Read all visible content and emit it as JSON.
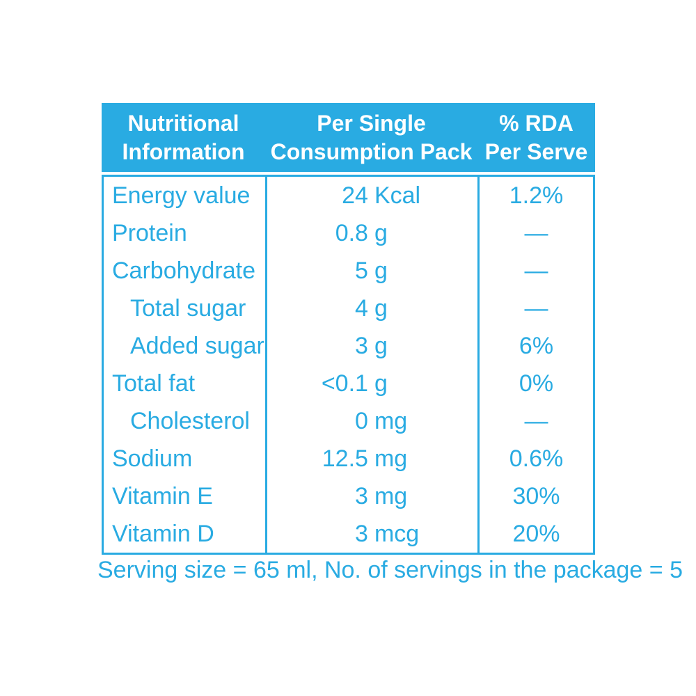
{
  "colors": {
    "accent": "#29ABE2",
    "header_text": "#FFFFFF",
    "background": "#FFFFFF"
  },
  "table": {
    "headers": [
      {
        "line1": "Nutritional",
        "line2": "Information"
      },
      {
        "line1": "Per Single",
        "line2": "Consumption Pack"
      },
      {
        "line1": "% RDA",
        "line2": "Per Serve"
      }
    ],
    "rows": [
      {
        "label": "Energy value",
        "indent": false,
        "amount": "24",
        "unit": "Kcal",
        "rda": "1.2%"
      },
      {
        "label": "Protein",
        "indent": false,
        "amount": "0.8",
        "unit": "g",
        "rda": "—"
      },
      {
        "label": "Carbohydrate",
        "indent": false,
        "amount": "5",
        "unit": "g",
        "rda": "—"
      },
      {
        "label": "Total sugar",
        "indent": true,
        "amount": "4",
        "unit": "g",
        "rda": "—"
      },
      {
        "label": "Added sugar",
        "indent": true,
        "amount": "3",
        "unit": "g",
        "rda": "6%"
      },
      {
        "label": "Total fat",
        "indent": false,
        "amount": "<0.1",
        "unit": "g",
        "rda": "0%"
      },
      {
        "label": "Cholesterol",
        "indent": true,
        "amount": "0",
        "unit": "mg",
        "rda": "—"
      },
      {
        "label": "Sodium",
        "indent": false,
        "amount": "12.5",
        "unit": "mg",
        "rda": "0.6%"
      },
      {
        "label": "Vitamin E",
        "indent": false,
        "amount": "3",
        "unit": "mg",
        "rda": "30%"
      },
      {
        "label": "Vitamin D",
        "indent": false,
        "amount": "3",
        "unit": "mcg",
        "rda": "20%"
      }
    ]
  },
  "footer": {
    "text": "Serving size = 65 ml, No. of servings in the package = 5"
  }
}
